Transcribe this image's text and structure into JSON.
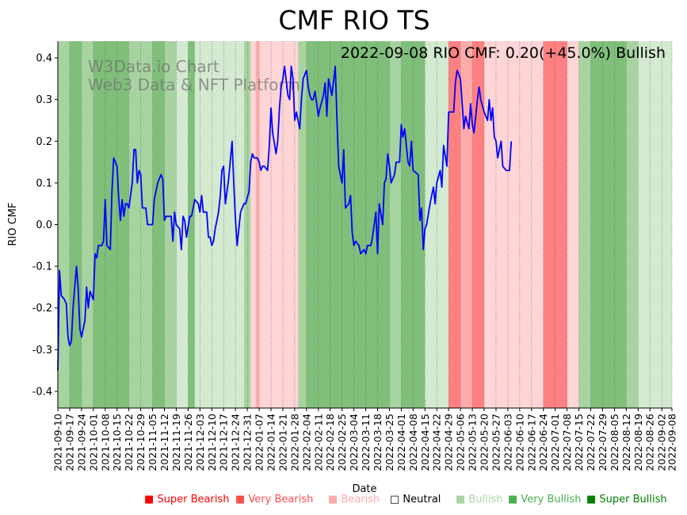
{
  "title": "CMF RIO TS",
  "annotation": "2022-09-08 RIO CMF: 0.20(+45.0%) Bullish",
  "watermark": {
    "line1": "W3Data.io Chart",
    "line2": "Web3 Data & NFT Platform"
  },
  "colors": {
    "line": "#0000ff",
    "super_bearish": "#ff0000",
    "very_bearish": "#ff4d4d",
    "bearish": "#ffaaaa",
    "neutral": "#000000",
    "bullish": "#a8d5a2",
    "very_bullish": "#4caf50",
    "super_bullish": "#008000",
    "bg_super_bearish": "#ff8080",
    "bg_very_bearish": "#ffabab",
    "bg_bearish": "#ffd5d5",
    "bg_bullish": "#d3e9d0",
    "bg_very_bullish": "#a7d3a0",
    "bg_super_bullish": "#7fbf7a"
  },
  "legend": [
    {
      "label": "Super Bearish",
      "marker": "■",
      "color": "#ff0000"
    },
    {
      "label": "Very Bearish",
      "marker": "■",
      "color": "#ff4d4d"
    },
    {
      "label": "Bearish",
      "marker": "■",
      "color": "#ffaaaa"
    },
    {
      "label": "Neutral",
      "marker": "□",
      "color": "#000000"
    },
    {
      "label": "Bullish",
      "marker": "■",
      "color": "#a8d5a2"
    },
    {
      "label": "Very Bullish",
      "marker": "■",
      "color": "#4caf50"
    },
    {
      "label": "Super Bullish",
      "marker": "■",
      "color": "#008000"
    }
  ],
  "chart_data": {
    "type": "line",
    "title": "CMF RIO TS",
    "xlabel": "Date",
    "ylabel": "RIO CMF",
    "xlim": [
      "2021-09-10",
      "2022-09-08"
    ],
    "ylim": [
      -0.44,
      0.44
    ],
    "yticks": [
      -0.4,
      -0.3,
      -0.2,
      -0.1,
      0.0,
      0.1,
      0.2,
      0.3,
      0.4
    ],
    "xticks": [
      "2021-09-10",
      "2021-09-17",
      "2021-09-24",
      "2021-10-01",
      "2021-10-08",
      "2021-10-15",
      "2021-10-22",
      "2021-10-29",
      "2021-11-05",
      "2021-11-12",
      "2021-11-19",
      "2021-11-26",
      "2021-12-03",
      "2021-12-10",
      "2021-12-17",
      "2021-12-24",
      "2021-12-31",
      "2022-01-07",
      "2022-01-14",
      "2022-01-21",
      "2022-01-28",
      "2022-02-04",
      "2022-02-11",
      "2022-02-18",
      "2022-02-25",
      "2022-03-04",
      "2022-03-11",
      "2022-03-18",
      "2022-03-25",
      "2022-04-01",
      "2022-04-08",
      "2022-04-15",
      "2022-04-22",
      "2022-04-29",
      "2022-05-06",
      "2022-05-13",
      "2022-05-20",
      "2022-05-27",
      "2022-06-03",
      "2022-06-10",
      "2022-06-17",
      "2022-06-24",
      "2022-07-01",
      "2022-07-08",
      "2022-07-15",
      "2022-07-22",
      "2022-07-29",
      "2022-08-05",
      "2022-08-12",
      "2022-08-19",
      "2022-08-26",
      "2022-09-02",
      "2022-09-08"
    ],
    "grid": "vertical dotted",
    "legend_position": "bottom",
    "series": [
      {
        "points": [
          [
            "2021-09-10",
            -0.35
          ],
          [
            "2021-09-11",
            -0.11
          ],
          [
            "2021-09-12",
            -0.17
          ],
          [
            "2021-09-14",
            -0.18
          ],
          [
            "2021-09-15",
            -0.19
          ],
          [
            "2021-09-16",
            -0.27
          ],
          [
            "2021-09-17",
            -0.29
          ],
          [
            "2021-09-18",
            -0.28
          ],
          [
            "2021-09-19",
            -0.2
          ],
          [
            "2021-09-21",
            -0.1
          ],
          [
            "2021-09-22",
            -0.15
          ],
          [
            "2021-09-23",
            -0.25
          ],
          [
            "2021-09-24",
            -0.27
          ],
          [
            "2021-09-26",
            -0.23
          ],
          [
            "2021-09-27",
            -0.15
          ],
          [
            "2021-09-28",
            -0.2
          ],
          [
            "2021-09-29",
            -0.16
          ],
          [
            "2021-10-01",
            -0.18
          ],
          [
            "2021-10-02",
            -0.07
          ],
          [
            "2021-10-03",
            -0.08
          ],
          [
            "2021-10-04",
            -0.05
          ],
          [
            "2021-10-06",
            -0.05
          ],
          [
            "2021-10-07",
            -0.04
          ],
          [
            "2021-10-08",
            0.06
          ],
          [
            "2021-10-09",
            -0.05
          ],
          [
            "2021-10-11",
            -0.06
          ],
          [
            "2021-10-12",
            0.08
          ],
          [
            "2021-10-13",
            0.16
          ],
          [
            "2021-10-15",
            0.14
          ],
          [
            "2021-10-16",
            0.06
          ],
          [
            "2021-10-17",
            0.01
          ],
          [
            "2021-10-18",
            0.06
          ],
          [
            "2021-10-19",
            0.02
          ],
          [
            "2021-10-20",
            0.05
          ],
          [
            "2021-10-21",
            0.05
          ],
          [
            "2021-10-22",
            0.04
          ],
          [
            "2021-10-24",
            0.1
          ],
          [
            "2021-10-25",
            0.18
          ],
          [
            "2021-10-26",
            0.18
          ],
          [
            "2021-10-27",
            0.1
          ],
          [
            "2021-10-28",
            0.13
          ],
          [
            "2021-10-29",
            0.12
          ],
          [
            "2021-10-30",
            0.04
          ],
          [
            "2021-11-01",
            0.04
          ],
          [
            "2021-11-02",
            0.0
          ],
          [
            "2021-11-05",
            0.0
          ],
          [
            "2021-11-06",
            0.06
          ],
          [
            "2021-11-08",
            0.1
          ],
          [
            "2021-11-10",
            0.12
          ],
          [
            "2021-11-11",
            0.11
          ],
          [
            "2021-11-12",
            0.01
          ],
          [
            "2021-11-13",
            0.02
          ],
          [
            "2021-11-16",
            0.02
          ],
          [
            "2021-11-17",
            -0.04
          ],
          [
            "2021-11-18",
            0.03
          ],
          [
            "2021-11-19",
            0.0
          ],
          [
            "2021-11-21",
            -0.01
          ],
          [
            "2021-11-22",
            -0.06
          ],
          [
            "2021-11-23",
            0.02
          ],
          [
            "2021-11-24",
            0.01
          ],
          [
            "2021-11-25",
            -0.03
          ],
          [
            "2021-11-27",
            0.02
          ],
          [
            "2021-11-28",
            0.02
          ],
          [
            "2021-11-30",
            0.06
          ],
          [
            "2021-12-02",
            0.05
          ],
          [
            "2021-12-03",
            0.03
          ],
          [
            "2021-12-04",
            0.07
          ],
          [
            "2021-12-05",
            0.03
          ],
          [
            "2021-12-07",
            0.03
          ],
          [
            "2021-12-08",
            -0.03
          ],
          [
            "2021-12-09",
            -0.03
          ],
          [
            "2021-12-10",
            -0.05
          ],
          [
            "2021-12-11",
            -0.04
          ],
          [
            "2021-12-12",
            -0.01
          ],
          [
            "2021-12-14",
            0.03
          ],
          [
            "2021-12-15",
            0.07
          ],
          [
            "2021-12-16",
            0.13
          ],
          [
            "2021-12-17",
            0.14
          ],
          [
            "2021-12-18",
            0.05
          ],
          [
            "2021-12-20",
            0.11
          ],
          [
            "2021-12-22",
            0.2
          ],
          [
            "2021-12-23",
            0.1
          ],
          [
            "2021-12-24",
            0.01
          ],
          [
            "2021-12-25",
            -0.05
          ],
          [
            "2021-12-27",
            0.03
          ],
          [
            "2021-12-28",
            0.04
          ],
          [
            "2021-12-29",
            0.05
          ],
          [
            "2021-12-30",
            0.05
          ],
          [
            "2022-01-01",
            0.08
          ],
          [
            "2022-01-02",
            0.15
          ],
          [
            "2022-01-03",
            0.17
          ],
          [
            "2022-01-04",
            0.16
          ],
          [
            "2022-01-06",
            0.16
          ],
          [
            "2022-01-07",
            0.15
          ],
          [
            "2022-01-08",
            0.13
          ],
          [
            "2022-01-09",
            0.14
          ],
          [
            "2022-01-10",
            0.14
          ],
          [
            "2022-01-12",
            0.13
          ],
          [
            "2022-01-13",
            0.19
          ],
          [
            "2022-01-14",
            0.28
          ],
          [
            "2022-01-15",
            0.22
          ],
          [
            "2022-01-17",
            0.17
          ],
          [
            "2022-01-18",
            0.2
          ],
          [
            "2022-01-19",
            0.28
          ],
          [
            "2022-01-20",
            0.33
          ],
          [
            "2022-01-21",
            0.35
          ],
          [
            "2022-01-22",
            0.38
          ],
          [
            "2022-01-24",
            0.31
          ],
          [
            "2022-01-25",
            0.3
          ],
          [
            "2022-01-26",
            0.38
          ],
          [
            "2022-01-27",
            0.35
          ],
          [
            "2022-01-28",
            0.25
          ],
          [
            "2022-01-29",
            0.27
          ],
          [
            "2022-01-31",
            0.23
          ],
          [
            "2022-02-01",
            0.3
          ],
          [
            "2022-02-02",
            0.35
          ],
          [
            "2022-02-04",
            0.37
          ],
          [
            "2022-02-05",
            0.33
          ],
          [
            "2022-02-06",
            0.31
          ],
          [
            "2022-02-07",
            0.3
          ],
          [
            "2022-02-08",
            0.3
          ],
          [
            "2022-02-09",
            0.32
          ],
          [
            "2022-02-11",
            0.26
          ],
          [
            "2022-02-12",
            0.28
          ],
          [
            "2022-02-14",
            0.31
          ],
          [
            "2022-02-15",
            0.34
          ],
          [
            "2022-02-16",
            0.26
          ],
          [
            "2022-02-17",
            0.35
          ],
          [
            "2022-02-19",
            0.31
          ],
          [
            "2022-02-21",
            0.38
          ],
          [
            "2022-02-22",
            0.25
          ],
          [
            "2022-02-23",
            0.14
          ],
          [
            "2022-02-25",
            0.1
          ],
          [
            "2022-02-26",
            0.18
          ],
          [
            "2022-02-27",
            0.04
          ],
          [
            "2022-03-01",
            0.05
          ],
          [
            "2022-03-02",
            0.07
          ],
          [
            "2022-03-03",
            -0.02
          ],
          [
            "2022-03-04",
            -0.05
          ],
          [
            "2022-03-05",
            -0.04
          ],
          [
            "2022-03-07",
            -0.05
          ],
          [
            "2022-03-08",
            -0.07
          ],
          [
            "2022-03-10",
            -0.06
          ],
          [
            "2022-03-11",
            -0.07
          ],
          [
            "2022-03-12",
            -0.05
          ],
          [
            "2022-03-14",
            -0.05
          ],
          [
            "2022-03-15",
            -0.03
          ],
          [
            "2022-03-17",
            0.03
          ],
          [
            "2022-03-18",
            -0.07
          ],
          [
            "2022-03-19",
            0.05
          ],
          [
            "2022-03-21",
            0.0
          ],
          [
            "2022-03-22",
            0.1
          ],
          [
            "2022-03-23",
            0.11
          ],
          [
            "2022-03-24",
            0.17
          ],
          [
            "2022-03-25",
            0.14
          ],
          [
            "2022-03-26",
            0.1
          ],
          [
            "2022-03-28",
            0.12
          ],
          [
            "2022-03-29",
            0.15
          ],
          [
            "2022-03-31",
            0.15
          ],
          [
            "2022-04-01",
            0.24
          ],
          [
            "2022-04-02",
            0.21
          ],
          [
            "2022-04-03",
            0.23
          ],
          [
            "2022-04-05",
            0.15
          ],
          [
            "2022-04-06",
            0.14
          ],
          [
            "2022-04-07",
            0.2
          ],
          [
            "2022-04-08",
            0.13
          ],
          [
            "2022-04-11",
            0.12
          ],
          [
            "2022-04-12",
            0.01
          ],
          [
            "2022-04-13",
            0.04
          ],
          [
            "2022-04-14",
            -0.06
          ],
          [
            "2022-04-15",
            -0.01
          ],
          [
            "2022-04-16",
            0.0
          ],
          [
            "2022-04-18",
            0.05
          ],
          [
            "2022-04-20",
            0.09
          ],
          [
            "2022-04-21",
            0.05
          ],
          [
            "2022-04-22",
            0.1
          ],
          [
            "2022-04-24",
            0.13
          ],
          [
            "2022-04-25",
            0.09
          ],
          [
            "2022-04-26",
            0.19
          ],
          [
            "2022-04-28",
            0.14
          ],
          [
            "2022-04-29",
            0.27
          ],
          [
            "2022-04-30",
            0.27
          ],
          [
            "2022-05-02",
            0.27
          ],
          [
            "2022-05-03",
            0.34
          ],
          [
            "2022-05-04",
            0.37
          ],
          [
            "2022-05-06",
            0.35
          ],
          [
            "2022-05-07",
            0.29
          ],
          [
            "2022-05-08",
            0.23
          ],
          [
            "2022-05-09",
            0.26
          ],
          [
            "2022-05-11",
            0.23
          ],
          [
            "2022-05-12",
            0.29
          ],
          [
            "2022-05-13",
            0.24
          ],
          [
            "2022-05-14",
            0.22
          ],
          [
            "2022-05-16",
            0.3
          ],
          [
            "2022-05-17",
            0.33
          ],
          [
            "2022-05-18",
            0.3
          ],
          [
            "2022-05-20",
            0.27
          ],
          [
            "2022-05-22",
            0.25
          ],
          [
            "2022-05-23",
            0.3
          ],
          [
            "2022-05-24",
            0.25
          ],
          [
            "2022-05-25",
            0.28
          ],
          [
            "2022-05-26",
            0.21
          ],
          [
            "2022-05-27",
            0.2
          ],
          [
            "2022-05-28",
            0.16
          ],
          [
            "2022-05-29",
            0.18
          ],
          [
            "2022-05-30",
            0.2
          ],
          [
            "2022-05-31",
            0.14
          ],
          [
            "2022-06-02",
            0.13
          ],
          [
            "2022-06-04",
            0.13
          ],
          [
            "2022-06-05",
            0.2
          ]
        ]
      }
    ],
    "sentiment_bands": [
      [
        "2021-09-10",
        "2021-09-17",
        "very_bullish"
      ],
      [
        "2021-09-17",
        "2021-09-24",
        "super_bullish"
      ],
      [
        "2021-09-24",
        "2021-10-01",
        "very_bullish"
      ],
      [
        "2021-10-01",
        "2021-10-22",
        "super_bullish"
      ],
      [
        "2021-10-22",
        "2021-11-05",
        "very_bullish"
      ],
      [
        "2021-11-05",
        "2021-11-12",
        "super_bullish"
      ],
      [
        "2021-11-12",
        "2021-11-19",
        "very_bullish"
      ],
      [
        "2021-11-19",
        "2021-11-26",
        "bullish"
      ],
      [
        "2021-11-26",
        "2021-11-30",
        "super_bullish"
      ],
      [
        "2021-11-30",
        "2021-12-29",
        "bullish"
      ],
      [
        "2021-12-29",
        "2022-01-02",
        "very_bullish"
      ],
      [
        "2022-01-02",
        "2022-01-05",
        "bearish"
      ],
      [
        "2022-01-05",
        "2022-01-07",
        "very_bearish"
      ],
      [
        "2022-01-07",
        "2022-01-30",
        "bearish"
      ],
      [
        "2022-01-30",
        "2022-02-04",
        "very_bullish"
      ],
      [
        "2022-02-04",
        "2022-03-25",
        "super_bullish"
      ],
      [
        "2022-03-25",
        "2022-04-01",
        "very_bullish"
      ],
      [
        "2022-04-01",
        "2022-04-15",
        "super_bullish"
      ],
      [
        "2022-04-15",
        "2022-04-29",
        "bullish"
      ],
      [
        "2022-04-29",
        "2022-05-06",
        "super_bearish"
      ],
      [
        "2022-05-06",
        "2022-05-13",
        "very_bearish"
      ],
      [
        "2022-05-13",
        "2022-05-20",
        "super_bearish"
      ],
      [
        "2022-05-20",
        "2022-06-24",
        "bearish"
      ],
      [
        "2022-06-24",
        "2022-07-08",
        "super_bearish"
      ],
      [
        "2022-07-08",
        "2022-07-15",
        "bearish"
      ],
      [
        "2022-07-15",
        "2022-07-22",
        "very_bullish"
      ],
      [
        "2022-07-22",
        "2022-08-12",
        "super_bullish"
      ],
      [
        "2022-08-12",
        "2022-08-19",
        "very_bullish"
      ],
      [
        "2022-08-19",
        "2022-09-08",
        "bullish"
      ]
    ]
  }
}
